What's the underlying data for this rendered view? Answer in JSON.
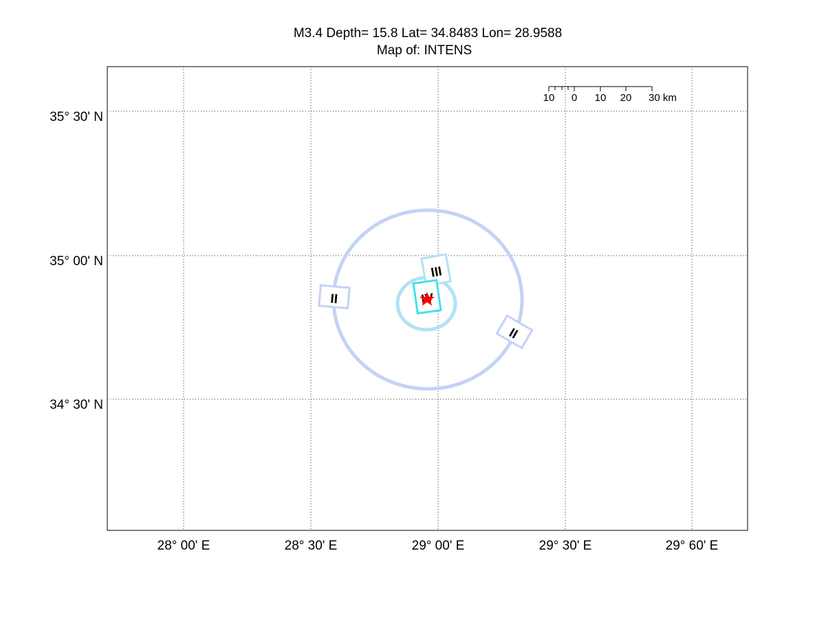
{
  "title": {
    "line1": "M3.4 Depth= 15.8 Lat= 34.8483 Lon= 28.9588",
    "line2": "Map of: INTENS"
  },
  "x_tick_labels": [
    "28° 00' E",
    "28° 30' E",
    "29° 00' E",
    "29° 30' E",
    "29° 60' E"
  ],
  "y_tick_labels": [
    "35° 30' N",
    "35° 00' N",
    "34° 30' N"
  ],
  "scale_bar": {
    "labels": [
      "10",
      "0",
      "10",
      "20",
      "30 km"
    ]
  },
  "contour_labels": [
    "II",
    "III",
    "IV",
    "II"
  ]
}
